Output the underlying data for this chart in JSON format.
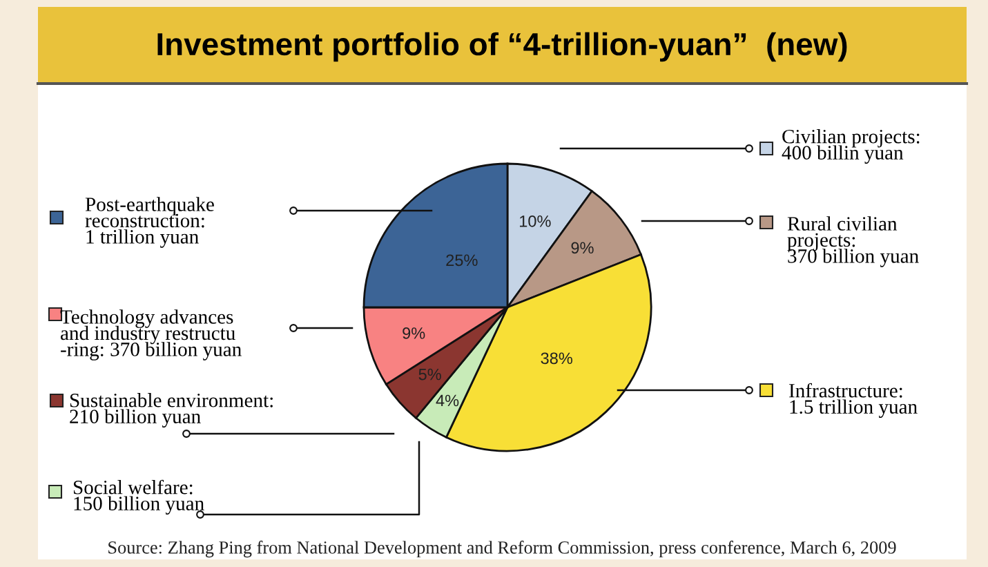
{
  "chart_data": {
    "type": "pie",
    "title": "Investment portfolio of “4-trillion-yuan”  (new)",
    "categories": [
      "Civilian projects:\n400 billin yuan",
      "Rural civilian\nprojects:\n370 billion yuan",
      "Infrastructure:\n1.5 trillion yuan",
      "Social welfare:\n150 billion yuan",
      "Sustainable environment:\n210 billion yuan",
      "Technology advances\nand industry restructu\n-ring: 370 billion yuan",
      "Post-earthquake\nreconstruction:\n1 trillion yuan"
    ],
    "values": [
      10,
      9,
      38,
      4,
      5,
      9,
      25
    ],
    "value_labels": [
      "10%",
      "9%",
      "38%",
      "4%",
      "5%",
      "9%",
      "25%"
    ],
    "colors": [
      "#c5d4e6",
      "#b89886",
      "#f8df36",
      "#c8ebb8",
      "#8b3630",
      "#f88282",
      "#3c6496"
    ],
    "legend": "left",
    "annotations": [
      "Source: Zhang Ping from National Development and Reform Commission, press conference, March 6, 2009"
    ]
  }
}
